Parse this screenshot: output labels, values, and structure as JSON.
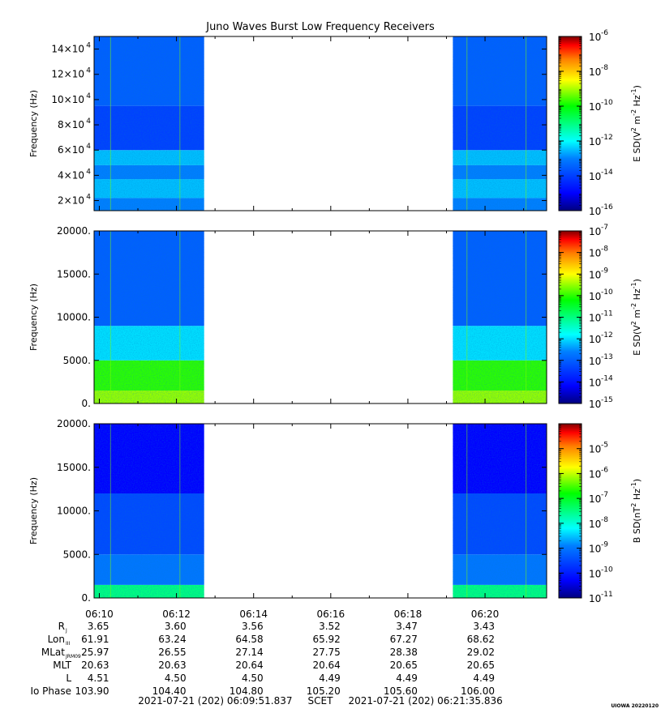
{
  "title": "Juno Waves Burst Low Frequency Receivers",
  "footer": {
    "time_range": "2021-07-21 (202) 06:09:51.837     SCET     2021-07-21 (202) 06:21:35.836",
    "credit": "UIOWA 20220120"
  },
  "x_axis": {
    "start": "06:09:51.837",
    "end": "06:21:35.836",
    "tick_labels": [
      "06:10",
      "06:12",
      "06:14",
      "06:16",
      "06:18",
      "06:20"
    ]
  },
  "ephemeris": {
    "rows": [
      {
        "label": "R",
        "sub": "J",
        "values": [
          "3.65",
          "3.60",
          "3.56",
          "3.52",
          "3.47",
          "3.43"
        ]
      },
      {
        "label": "Lon",
        "sub": "III",
        "values": [
          "61.91",
          "63.24",
          "64.58",
          "65.92",
          "67.27",
          "68.62"
        ]
      },
      {
        "label": "MLat",
        "sub": "JRM09",
        "values": [
          "25.97",
          "26.55",
          "27.14",
          "27.75",
          "28.38",
          "29.02"
        ]
      },
      {
        "label": "MLT",
        "sub": "",
        "values": [
          "20.63",
          "20.63",
          "20.64",
          "20.64",
          "20.65",
          "20.65"
        ]
      },
      {
        "label": "L",
        "sub": "",
        "values": [
          "4.51",
          "4.50",
          "4.50",
          "4.49",
          "4.49",
          "4.49"
        ]
      },
      {
        "label": "Io Phase",
        "sub": "",
        "values": [
          "103.90",
          "104.40",
          "104.80",
          "105.20",
          "105.60",
          "106.00"
        ]
      }
    ]
  },
  "colors": {
    "data_gap": "#ffffff",
    "colormap": [
      "#00007f",
      "#0000ff",
      "#007fff",
      "#00ffff",
      "#00ff7f",
      "#00ff00",
      "#ffff00",
      "#ff7f00",
      "#ff0000",
      "#7f0000"
    ]
  },
  "chart_data": [
    {
      "type": "heatmap",
      "panel": "top",
      "ylabel": "Frequency (Hz)",
      "ylim": [
        12000,
        150000
      ],
      "y_tick_labels": [
        "2×10",
        "4×10",
        "6×10",
        "8×10",
        "10×10",
        "12×10",
        "14×10"
      ],
      "y_tick_exponent": "4",
      "y_tick_values": [
        20000,
        40000,
        60000,
        80000,
        100000,
        120000,
        140000
      ],
      "data_segments": [
        [
          "06:09:51.837",
          "06:12:43"
        ],
        [
          "06:19:10",
          "06:21:35.836"
        ]
      ],
      "colorbar": {
        "label": "E SD(V",
        "label_parts": [
          "E SD(V",
          "2",
          " m",
          "-2",
          " Hz",
          "-1",
          ")"
        ],
        "scale": "log",
        "range": [
          1e-16,
          1e-06
        ],
        "tick_mantissa": "10",
        "tick_exponents": [
          "-16",
          "-14",
          "-12",
          "-10",
          "-8",
          "-6"
        ]
      },
      "bands": [
        {
          "freq_range": [
            12000,
            22000
          ],
          "level": "1e-13"
        },
        {
          "freq_range": [
            22000,
            37000
          ],
          "level": "1e-12.5"
        },
        {
          "freq_range": [
            37000,
            48000
          ],
          "level": "1e-13"
        },
        {
          "freq_range": [
            48000,
            60000
          ],
          "level": "1e-12.5"
        },
        {
          "freq_range": [
            60000,
            95000
          ],
          "level": "1e-14"
        },
        {
          "freq_range": [
            95000,
            150000
          ],
          "level": "1e-13.5"
        }
      ]
    },
    {
      "type": "heatmap",
      "panel": "middle",
      "ylabel": "Frequency (Hz)",
      "ylim": [
        0,
        20000
      ],
      "y_tick_labels": [
        "0.",
        "5000.",
        "10000.",
        "15000.",
        "20000."
      ],
      "y_tick_values": [
        0,
        5000,
        10000,
        15000,
        20000
      ],
      "data_segments": [
        [
          "06:09:51.837",
          "06:12:43"
        ],
        [
          "06:19:10",
          "06:21:35.836"
        ]
      ],
      "colorbar": {
        "label_parts": [
          "E SD(V",
          "2",
          " m",
          "-2",
          " Hz",
          "-1",
          ")"
        ],
        "scale": "log",
        "range": [
          1e-15,
          1e-07
        ],
        "tick_mantissa": "10",
        "tick_exponents": [
          "-15",
          "-14",
          "-13",
          "-12",
          "-11",
          "-10",
          "-9",
          "-8",
          "-7"
        ]
      },
      "bands": [
        {
          "freq_range": [
            0,
            1500
          ],
          "level": "1e-9.5"
        },
        {
          "freq_range": [
            1500,
            5000
          ],
          "level": "1e-10"
        },
        {
          "freq_range": [
            5000,
            9000
          ],
          "level": "1e-12"
        },
        {
          "freq_range": [
            9000,
            20000
          ],
          "level": "1e-13"
        }
      ]
    },
    {
      "type": "heatmap",
      "panel": "bottom",
      "ylabel": "Frequency (Hz)",
      "ylim": [
        0,
        20000
      ],
      "y_tick_labels": [
        "0.",
        "5000.",
        "10000.",
        "15000.",
        "20000."
      ],
      "y_tick_values": [
        0,
        5000,
        10000,
        15000,
        20000
      ],
      "data_segments": [
        [
          "06:09:51.837",
          "06:12:43"
        ],
        [
          "06:19:10",
          "06:21:35.836"
        ]
      ],
      "colorbar": {
        "label_parts": [
          "B SD(nT",
          "2",
          " Hz",
          "-1",
          ")"
        ],
        "scale": "log",
        "range": [
          1e-11,
          0.0001
        ],
        "tick_mantissa": "10",
        "tick_exponents": [
          "-11",
          "-10",
          "-9",
          "-8",
          "-7",
          "-6",
          "-5"
        ]
      },
      "bands": [
        {
          "freq_range": [
            0,
            1500
          ],
          "level": "1e-7.5"
        },
        {
          "freq_range": [
            1500,
            5000
          ],
          "level": "1e-9"
        },
        {
          "freq_range": [
            5000,
            12000
          ],
          "level": "1e-9.5"
        },
        {
          "freq_range": [
            12000,
            20000
          ],
          "level": "1e-10.3"
        }
      ]
    }
  ]
}
